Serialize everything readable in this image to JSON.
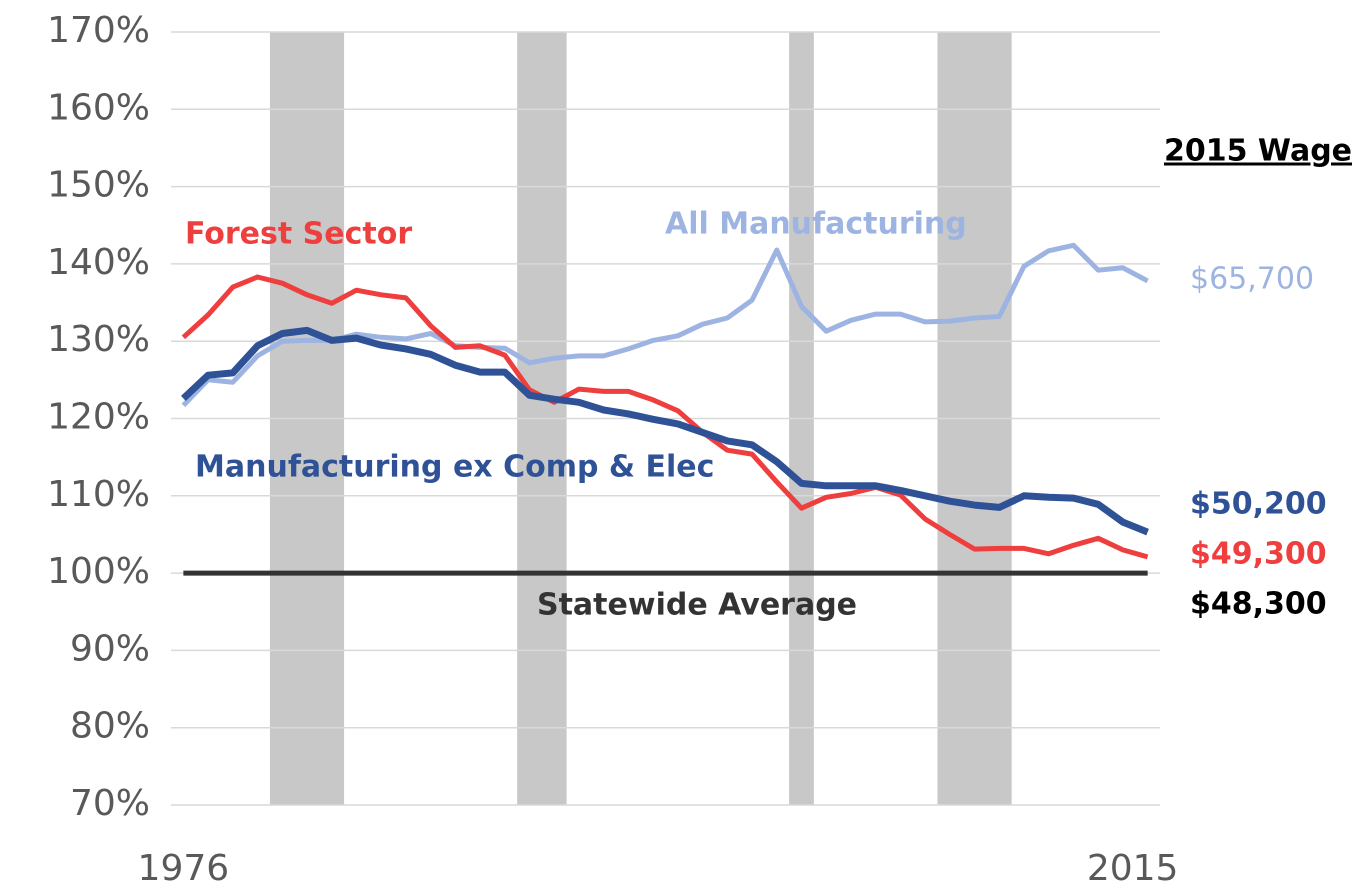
{
  "chart_data": {
    "type": "line",
    "x": [
      1976,
      1977,
      1978,
      1979,
      1980,
      1981,
      1982,
      1983,
      1984,
      1985,
      1986,
      1987,
      1988,
      1989,
      1990,
      1991,
      1992,
      1993,
      1994,
      1995,
      1996,
      1997,
      1998,
      1999,
      2000,
      2001,
      2002,
      2003,
      2004,
      2005,
      2006,
      2007,
      2008,
      2009,
      2010,
      2011,
      2012,
      2013,
      2014,
      2015
    ],
    "xlim": [
      1975.5,
      2015.5
    ],
    "xticks": [
      1976,
      2015
    ],
    "ylim": [
      70,
      170
    ],
    "yticks": [
      {
        "value": 70,
        "label": "70%"
      },
      {
        "value": 80,
        "label": "80%"
      },
      {
        "value": 90,
        "label": "90%"
      },
      {
        "value": 100,
        "label": "100%"
      },
      {
        "value": 110,
        "label": "110%"
      },
      {
        "value": 120,
        "label": "120%"
      },
      {
        "value": 130,
        "label": "130%"
      },
      {
        "value": 140,
        "label": "140%"
      },
      {
        "value": 150,
        "label": "150%"
      },
      {
        "value": 160,
        "label": "160%"
      },
      {
        "value": 170,
        "label": "170%"
      }
    ],
    "grid": true,
    "recessions": [
      [
        1980,
        1982
      ],
      [
        1990,
        1991
      ],
      [
        2001,
        2001
      ],
      [
        2007,
        2009
      ]
    ],
    "recession_color": "#c8c8c8",
    "wage_header": "2015 Wage",
    "series": [
      {
        "name": "All Manufacturing",
        "color": "#9db4e2",
        "wage": "$65,700",
        "values": [
          121.7,
          125,
          124.7,
          128.1,
          130,
          130.1,
          130.1,
          130.9,
          130.5,
          130.3,
          131,
          129.4,
          129.2,
          129.1,
          127.2,
          127.8,
          128.1,
          128.1,
          129,
          130.1,
          130.7,
          132.2,
          133,
          135.3,
          141.8,
          134.5,
          131.3,
          132.7,
          133.5,
          133.5,
          132.5,
          132.6,
          133,
          133.2,
          139.7,
          141.7,
          142.4,
          139.2,
          139.5,
          137.8
        ]
      },
      {
        "name": "Forest Sector",
        "color": "#ef3e3e",
        "wage": "$49,300",
        "values": [
          130.5,
          133.4,
          137,
          138.3,
          137.5,
          136,
          134.9,
          136.6,
          136,
          135.6,
          132,
          129.2,
          129.4,
          128.2,
          123.7,
          122.1,
          123.8,
          123.5,
          123.5,
          122.4,
          121,
          118.2,
          115.9,
          115.4,
          111.8,
          108.4,
          109.8,
          110.3,
          111.1,
          110.1,
          107,
          105,
          103.1,
          103.2,
          103.2,
          102.5,
          103.6,
          104.5,
          103,
          102.1
        ]
      },
      {
        "name": "Manufacturing ex Comp & Elec",
        "color": "#2f5297",
        "wage": "$50,200",
        "values": [
          122.6,
          125.6,
          125.9,
          129.4,
          131,
          131.4,
          130.1,
          130.4,
          129.5,
          129,
          128.3,
          126.9,
          126,
          126,
          123,
          122.5,
          122.1,
          121.1,
          120.6,
          119.9,
          119.3,
          118.2,
          117.1,
          116.6,
          114.4,
          111.6,
          111.3,
          111.3,
          111.3,
          110.7,
          110,
          109.3,
          108.8,
          108.5,
          110,
          109.8,
          109.7,
          108.9,
          106.6,
          105.3
        ]
      }
    ],
    "reference_line": {
      "value": 100,
      "name": "Statewide Average",
      "wage": "$48,300",
      "color": "#333333"
    }
  }
}
